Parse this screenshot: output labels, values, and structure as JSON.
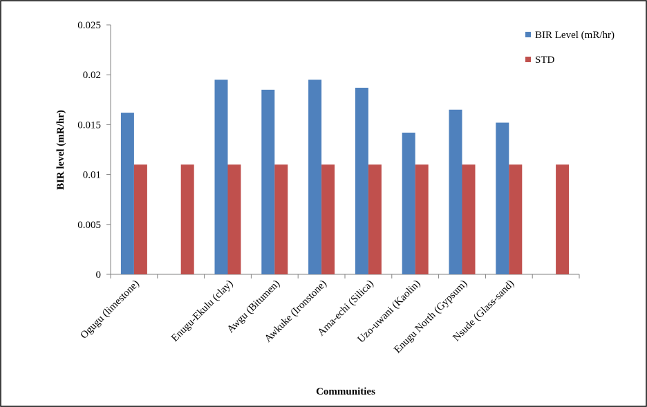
{
  "chart_data": {
    "type": "bar",
    "title": "",
    "xlabel": "Communities",
    "ylabel": "BIR level (mR/hr)",
    "ylim": [
      0,
      0.025
    ],
    "yticks": [
      "0",
      "0.005",
      "0.01",
      "0.015",
      "0.02",
      "0.025"
    ],
    "ytick_values": [
      0,
      0.005,
      0.01,
      0.015,
      0.02,
      0.025
    ],
    "grid": false,
    "legend_position": "top-right",
    "categories": [
      "Ogugu (limestone)",
      "",
      "Enugu-Ekulu (clay)",
      "Awgu (Bitumen)",
      "Awkuke (Ironstone)",
      "Ama-echi (Silica)",
      "Uzo-uwani (Kaolin)",
      "Enugu North (Gypsum)",
      "Nsude (Glass-sand)",
      ""
    ],
    "series": [
      {
        "name": "BIR Level (mR/hr)",
        "color": "#4F81BD",
        "values": [
          0.0162,
          null,
          0.0195,
          0.0185,
          0.0195,
          0.0187,
          0.0142,
          0.0165,
          0.0152,
          null
        ]
      },
      {
        "name": "STD",
        "color": "#C0504D",
        "values": [
          0.011,
          0.011,
          0.011,
          0.011,
          0.011,
          0.011,
          0.011,
          0.011,
          0.011,
          0.011
        ]
      }
    ]
  }
}
